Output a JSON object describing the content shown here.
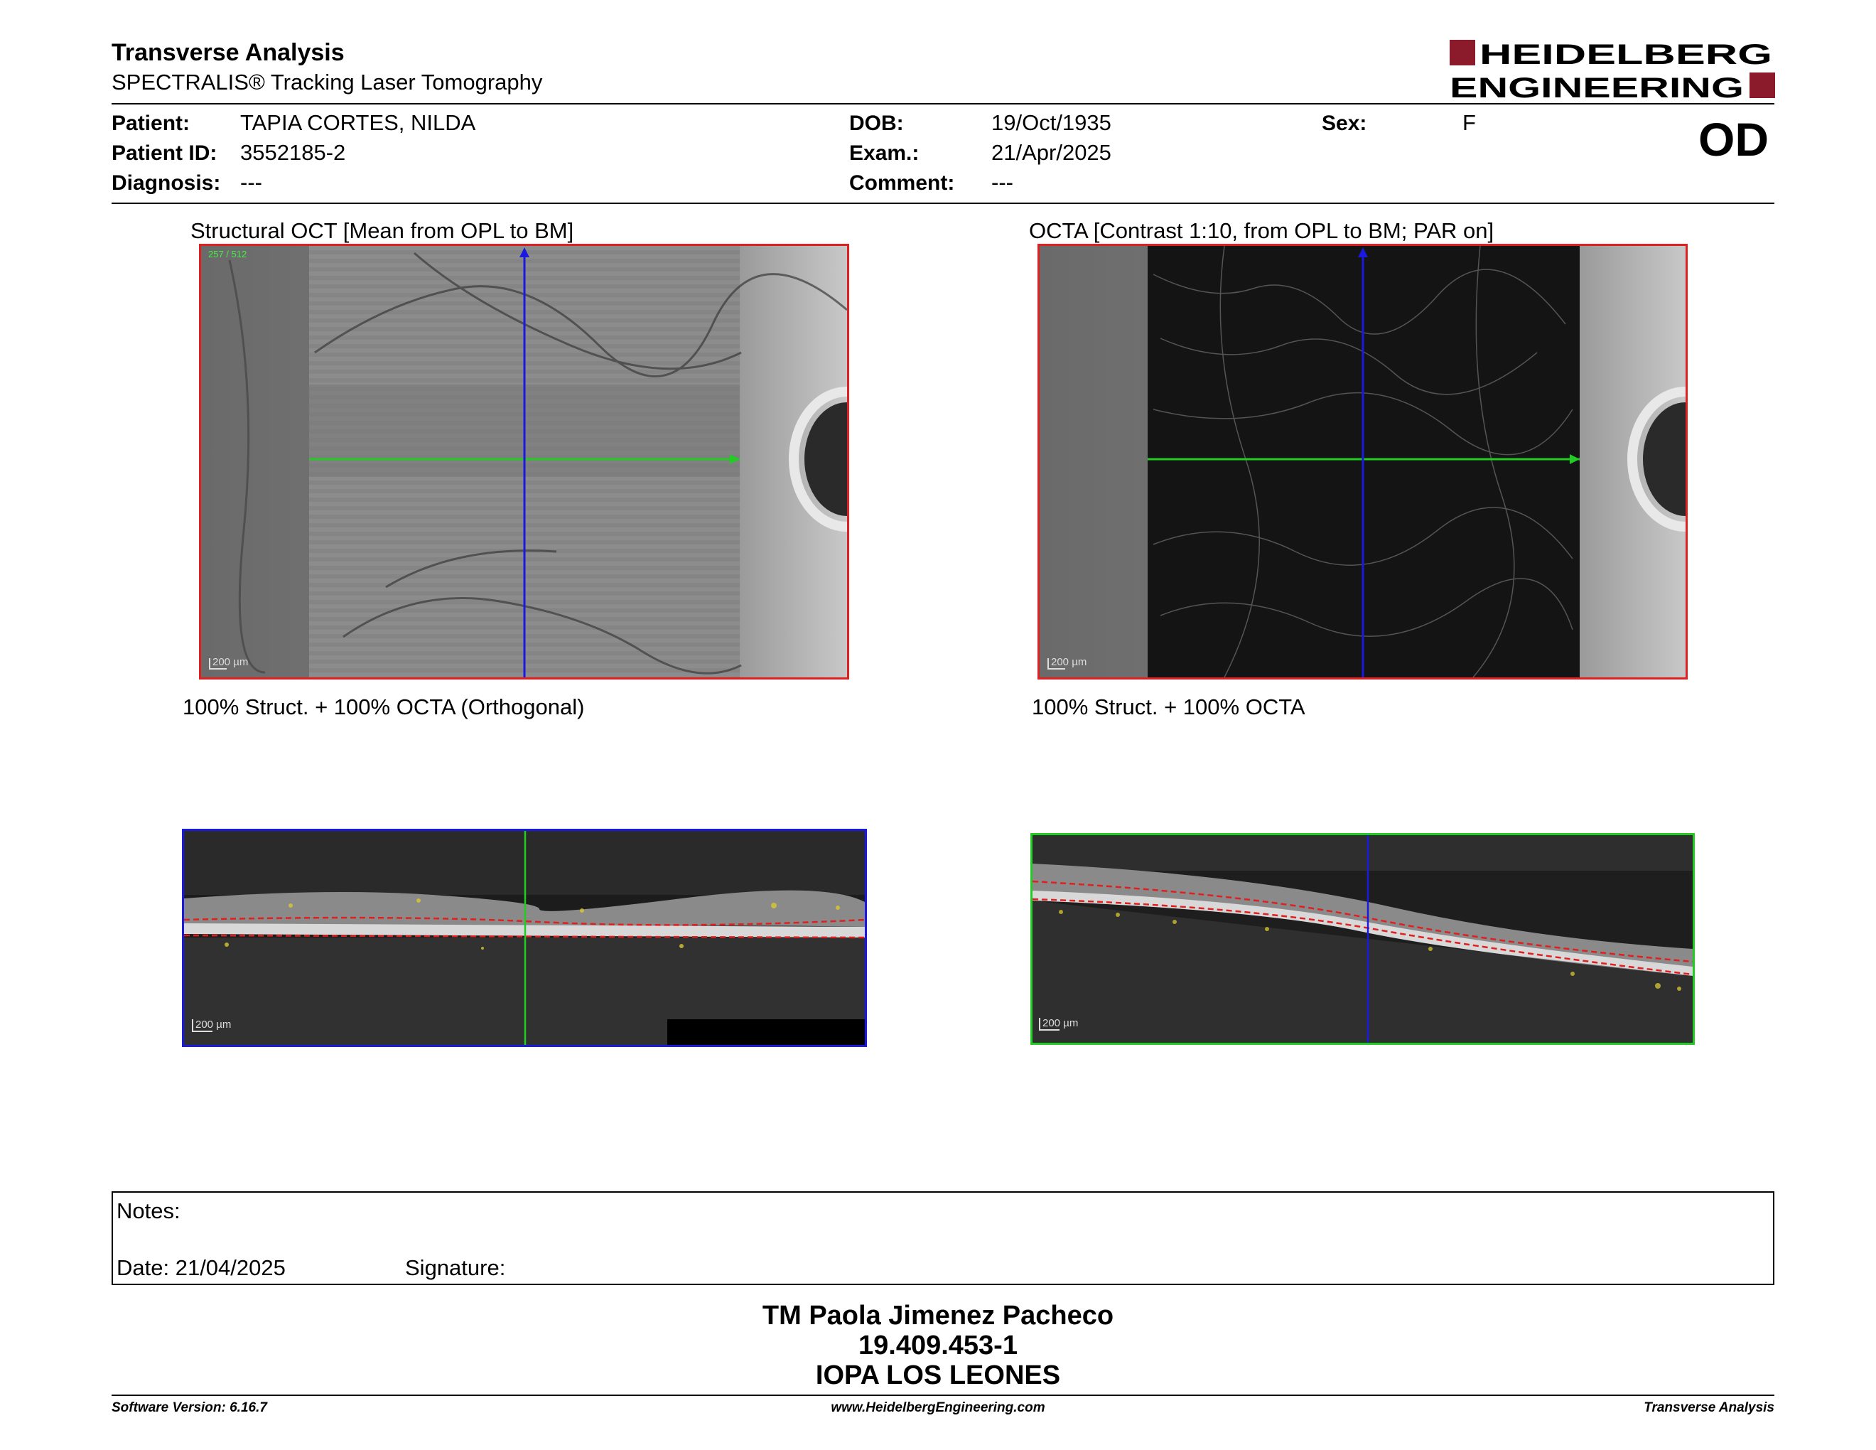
{
  "header": {
    "title": "Transverse Analysis",
    "subtitle": "SPECTRALIS® Tracking Laser Tomography",
    "logo_line1": "HEIDELBERG",
    "logo_line2": "ENGINEERING",
    "eye": "OD"
  },
  "patient": {
    "patient_label": "Patient:",
    "patient_value": "TAPIA CORTES, NILDA",
    "id_label": "Patient ID:",
    "id_value": "3552185-2",
    "diagnosis_label": "Diagnosis:",
    "diagnosis_value": "---",
    "dob_label": "DOB:",
    "dob_value": "19/Oct/1935",
    "exam_label": "Exam.:",
    "exam_value": "21/Apr/2025",
    "comment_label": "Comment:",
    "comment_value": "---",
    "sex_label": "Sex:",
    "sex_value": "F"
  },
  "images": {
    "structural_caption": "Structural OCT [Mean from OPL to BM]",
    "octa_caption": "OCTA [Contrast 1:10, from OPL to BM; PAR on]",
    "orthogonal_caption": "100% Struct. + 100% OCTA (Orthogonal)",
    "struct_octa_caption": "100% Struct. + 100% OCTA",
    "scale_label": "200 µm",
    "frame_counter": "257 / 512"
  },
  "notes": {
    "notes_label": "Notes:",
    "date_label": "Date: 21/04/2025",
    "signature_label": "Signature:"
  },
  "signature_block": {
    "name": "TM Paola Jimenez Pacheco",
    "rut": "19.409.453-1",
    "institution": "IOPA LOS LEONES"
  },
  "footer": {
    "software": "Software Version: 6.16.7",
    "website": "www.HeidelbergEngineering.com",
    "report_type": "Transverse Analysis"
  },
  "colors": {
    "logo_red": "#8b1a2b",
    "frame_red": "#e02020",
    "frame_blue": "#1a1adf",
    "frame_green": "#22cc22"
  }
}
